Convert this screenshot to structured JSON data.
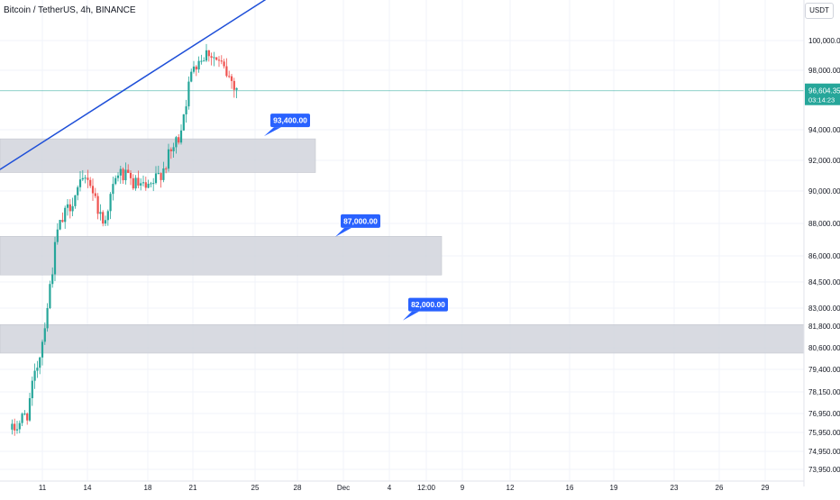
{
  "header": {
    "title": "Bitcoin / TetherUS, 4h, BINANCE",
    "currency_label": "USDT"
  },
  "colors": {
    "up": "#26a69a",
    "down": "#ef5350",
    "trendline": "#1e4fd8",
    "zone_fill": "#d1d4dc",
    "annotation_bg": "#2962ff",
    "last_price_line": "#26a69a",
    "axis_text": "#131722"
  },
  "chart_data": {
    "type": "candlestick",
    "symbol": "BTC/USDT",
    "interval": "4h",
    "exchange": "BINANCE",
    "price_scale": "log",
    "y_tick_labels": [
      "100,000.00",
      "98,000.00",
      "94,000.00",
      "92,000.00",
      "90,000.00",
      "88,000.00",
      "86,000.00",
      "84,500.00",
      "83,000.00",
      "81,800.00",
      "80,600.00",
      "79,400.00",
      "78,150.00",
      "76,950.00",
      "75,950.00",
      "74,950.00",
      "73,950.00"
    ],
    "y_tick_values": [
      100000,
      98000,
      94000,
      92000,
      90000,
      88000,
      86000,
      84500,
      83000,
      81800,
      80600,
      79400,
      78150,
      76950,
      75950,
      74950,
      73950
    ],
    "x_tick_labels": [
      "11",
      "14",
      "18",
      "21",
      "25",
      "28",
      "Dec",
      "4",
      "12:00",
      "9",
      "12",
      "16",
      "19",
      "23",
      "26",
      "29"
    ],
    "last_price": {
      "label": "96,604.35",
      "countdown": "03:14:23",
      "value": 96604.35
    },
    "candles_window": {
      "start": "Nov 9",
      "end": "Nov 24",
      "approx_open": 75800,
      "approx_close": 96600,
      "approx_high": 99500,
      "approx_low": 75900
    },
    "key_path": [
      {
        "day": "Nov 9",
        "price": 76000
      },
      {
        "day": "Nov 10",
        "price": 77000
      },
      {
        "day": "Nov 11",
        "price": 81000
      },
      {
        "day": "Nov 12",
        "price": 87500
      },
      {
        "day": "Nov 13",
        "price": 89500
      },
      {
        "day": "Nov 14",
        "price": 91000
      },
      {
        "day": "Nov 15",
        "price": 88000
      },
      {
        "day": "Nov 16",
        "price": 91200
      },
      {
        "day": "Nov 17",
        "price": 90500
      },
      {
        "day": "Nov 18",
        "price": 90000
      },
      {
        "day": "Nov 19",
        "price": 91500
      },
      {
        "day": "Nov 20",
        "price": 93500
      },
      {
        "day": "Nov 21",
        "price": 98500
      },
      {
        "day": "Nov 22",
        "price": 99300
      },
      {
        "day": "Nov 23",
        "price": 98000
      },
      {
        "day": "Nov 24",
        "price": 96600
      }
    ],
    "zones": [
      {
        "name": "zone-93400",
        "top": 93400,
        "bottom": 91200,
        "from": "start",
        "to": "Nov 28"
      },
      {
        "name": "zone-87000",
        "top": 87200,
        "bottom": 84900,
        "from": "start",
        "to": "Dec 9"
      },
      {
        "name": "zone-82000",
        "top": 81900,
        "bottom": 80300,
        "from": "start",
        "to": "end"
      }
    ],
    "annotations": [
      {
        "label": "93,400.00",
        "value": 93400
      },
      {
        "label": "87,000.00",
        "value": 87000
      },
      {
        "label": "82,000.00",
        "value": 82000
      }
    ],
    "trendline": {
      "start_day": "Nov 9",
      "start_price": 91400,
      "end_day": "Nov 26",
      "end_price": 103000
    }
  }
}
